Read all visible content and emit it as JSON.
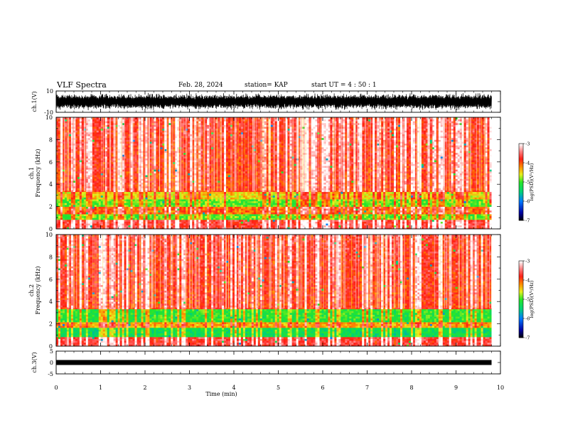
{
  "header": {
    "title": "VLF Spectra",
    "date": "Feb. 28, 2024",
    "station": "station= KAP",
    "start": "start UT =  4 : 50 : 1"
  },
  "chart_data": [
    {
      "type": "line",
      "panel": "ch1-waveform",
      "ylabel": "ch.1(V)",
      "ylim": [
        -10,
        10
      ],
      "y_ticks": [
        "10",
        "-10"
      ],
      "xlim": [
        0,
        10
      ],
      "x_end": 9.8,
      "color": "#000000",
      "note_amplitude_range": [
        -8,
        8
      ]
    },
    {
      "type": "heatmap",
      "panel": "ch1-spectrogram",
      "ylabel": "ch.1\nFrequency (kHz)",
      "ylabel_lines": [
        "ch.1",
        "Frequency (kHz)"
      ],
      "ylim": [
        0,
        10
      ],
      "y_ticks": [
        "0",
        "2",
        "4",
        "6",
        "8",
        "10"
      ],
      "xlim": [
        0,
        10
      ],
      "x_end": 9.8,
      "bands": [
        {
          "from": 0,
          "to": 0.8,
          "level": -3.6
        },
        {
          "from": 0.8,
          "to": 1.4,
          "level": -4.8
        },
        {
          "from": 1.4,
          "to": 2.0,
          "level": -4.0
        },
        {
          "from": 2.0,
          "to": 2.6,
          "level": -4.8
        },
        {
          "from": 2.6,
          "to": 3.4,
          "level": -4.4
        },
        {
          "from": 3.4,
          "to": 10.0,
          "level": -3.8
        }
      ],
      "colorbar": {
        "label": "log(PSD)(V²/Hz)",
        "ticks": [
          "-3",
          "-4",
          "-5",
          "-6",
          "-7"
        ],
        "range": [
          -7,
          -3
        ]
      }
    },
    {
      "type": "heatmap",
      "panel": "ch2-spectrogram",
      "ylabel": "ch.2\nFrequency (kHz)",
      "ylabel_lines": [
        "ch.2",
        "Frequency (kHz)"
      ],
      "ylim": [
        0,
        10
      ],
      "y_ticks": [
        "0",
        "2",
        "4",
        "6",
        "8",
        "10"
      ],
      "xlim": [
        0,
        10
      ],
      "x_end": 9.8,
      "bands": [
        {
          "from": 0,
          "to": 0.8,
          "level": -3.6
        },
        {
          "from": 0.8,
          "to": 1.6,
          "level": -5.2
        },
        {
          "from": 1.6,
          "to": 2.2,
          "level": -4.2
        },
        {
          "from": 2.2,
          "to": 3.4,
          "level": -5.0
        },
        {
          "from": 3.4,
          "to": 10.0,
          "level": -3.8
        }
      ],
      "colorbar": {
        "label": "log(PSD)(V²/Hz)",
        "ticks": [
          "-3",
          "-4",
          "-5",
          "-6",
          "-7"
        ],
        "range": [
          -7,
          -3
        ]
      }
    },
    {
      "type": "line",
      "panel": "ch3-waveform",
      "ylabel": "ch.3(V)",
      "ylim": [
        -5,
        5
      ],
      "y_ticks": [
        "5",
        "0",
        "-5"
      ],
      "xlim": [
        0,
        10
      ],
      "x_end": 9.8,
      "level": 0,
      "xlabel": "Time (min)",
      "x_ticks": [
        "0",
        "1",
        "2",
        "3",
        "4",
        "5",
        "6",
        "7",
        "8",
        "9",
        "10"
      ]
    }
  ]
}
